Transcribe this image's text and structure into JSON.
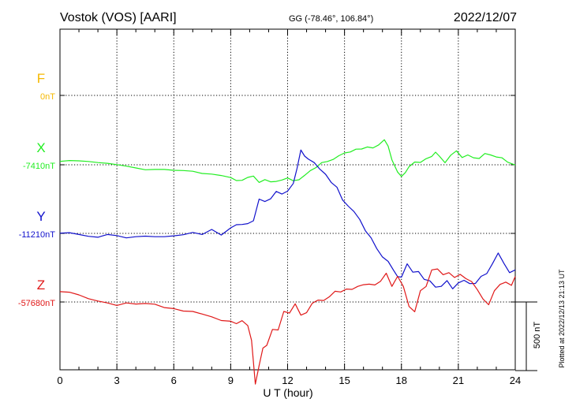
{
  "header": {
    "station": "Vostok (VOS)  [AARI]",
    "coords": "GG (-78.46°, 106.84°)",
    "date": "2022/12/07"
  },
  "footer": {
    "plotted": "Plotted at 2022/12/13 21:13 UT"
  },
  "chart_data": {
    "type": "line",
    "xlabel": "U T (hour)",
    "xlim": [
      0,
      24
    ],
    "xticks": [
      "0",
      "3",
      "6",
      "9",
      "12",
      "15",
      "18",
      "21",
      "24"
    ],
    "scale_label": "500 nT",
    "scale_nT": 500,
    "series": [
      {
        "name": "F",
        "baseline_label": "0nT",
        "color": "#f5b800",
        "x": [],
        "y": []
      },
      {
        "name": "X",
        "baseline_label": "-7410nT",
        "color": "#22ee22",
        "x": [
          0,
          0.5,
          1,
          1.5,
          2,
          2.5,
          3,
          3.5,
          4,
          4.5,
          5,
          5.5,
          6,
          6.5,
          7,
          7.5,
          8,
          8.5,
          9,
          9.3,
          9.6,
          9.9,
          10.2,
          10.5,
          10.8,
          11.1,
          11.4,
          11.7,
          12,
          12.3,
          12.6,
          12.9,
          13.2,
          13.5,
          13.8,
          14.1,
          14.4,
          14.7,
          15,
          15.3,
          15.6,
          15.9,
          16.2,
          16.5,
          16.8,
          17.1,
          17.3,
          17.5,
          17.8,
          18,
          18.2,
          18.4,
          18.7,
          19,
          19.3,
          19.6,
          19.8,
          20,
          20.3,
          20.6,
          20.9,
          21.2,
          21.5,
          21.8,
          22.1,
          22.4,
          22.7,
          23,
          23.3,
          23.6,
          24
        ],
        "y": [
          25,
          31,
          29,
          24,
          16,
          11,
          1,
          -10,
          -23,
          -36,
          -34,
          -34,
          -40,
          -42,
          -47,
          -63,
          -68,
          -78,
          -93,
          -115,
          -113,
          -92,
          -82,
          -129,
          -108,
          -124,
          -121,
          -111,
          -96,
          -116,
          -109,
          -77,
          -42,
          -20,
          16,
          24,
          39,
          66,
          86,
          93,
          114,
          115,
          130,
          123,
          145,
          183,
          136,
          36,
          -53,
          -85,
          -58,
          -14,
          20,
          17,
          44,
          61,
          92,
          63,
          15,
          70,
          102,
          53,
          72,
          51,
          46,
          82,
          72,
          57,
          51,
          19,
          -2
        ]
      },
      {
        "name": "Y",
        "baseline_label": "-11210nT",
        "color": "#1111cc",
        "x": [
          0,
          0.5,
          1,
          1.5,
          2,
          2.5,
          3,
          3.5,
          4,
          4.5,
          5,
          5.5,
          6,
          6.5,
          7,
          7.5,
          8,
          8.5,
          9,
          9.3,
          9.6,
          9.9,
          10.2,
          10.5,
          10.8,
          11.1,
          11.4,
          11.7,
          12,
          12.3,
          12.5,
          12.7,
          12.9,
          13.1,
          13.4,
          13.7,
          14,
          14.3,
          14.6,
          14.9,
          15.2,
          15.5,
          15.8,
          16.1,
          16.4,
          16.7,
          17,
          17.3,
          17.6,
          17.8,
          18,
          18.3,
          18.6,
          18.9,
          19.2,
          19.5,
          19.8,
          20.1,
          20.4,
          20.7,
          21,
          21.3,
          21.6,
          21.9,
          22.2,
          22.5,
          22.8,
          23.1,
          23.4,
          23.7,
          24
        ],
        "y": [
          2,
          5,
          -8,
          -21,
          -28,
          -8,
          -16,
          -33,
          -24,
          -20,
          -24,
          -24,
          -18,
          -10,
          7,
          -8,
          29,
          -12,
          40,
          63,
          65,
          71,
          92,
          250,
          232,
          252,
          306,
          287,
          308,
          364,
          475,
          608,
          563,
          541,
          516,
          468,
          431,
          371,
          337,
          243,
          198,
          159,
          102,
          19,
          -32,
          -111,
          -172,
          -204,
          -272,
          -315,
          -319,
          -222,
          -283,
          -278,
          -335,
          -346,
          -392,
          -386,
          -344,
          -404,
          -361,
          -342,
          -366,
          -365,
          -313,
          -293,
          -220,
          -143,
          -218,
          -286,
          -266
        ]
      },
      {
        "name": "Z",
        "baseline_label": "-57680nT",
        "color": "#e01818",
        "x": [
          0,
          0.5,
          1,
          1.5,
          2,
          2.5,
          3,
          3.5,
          4,
          4.5,
          5,
          5.5,
          6,
          6.5,
          7,
          7.5,
          8,
          8.5,
          9,
          9.3,
          9.6,
          9.9,
          10.1,
          10.3,
          10.5,
          10.7,
          10.9,
          11.2,
          11.5,
          11.8,
          12.1,
          12.4,
          12.7,
          13,
          13.3,
          13.6,
          13.9,
          14.2,
          14.5,
          14.8,
          15.1,
          15.4,
          15.7,
          16,
          16.3,
          16.6,
          16.9,
          17.2,
          17.5,
          17.8,
          18.1,
          18.4,
          18.7,
          19,
          19.3,
          19.6,
          19.9,
          20.2,
          20.5,
          20.8,
          21.1,
          21.4,
          21.7,
          22,
          22.3,
          22.6,
          22.9,
          23.2,
          23.5,
          23.8,
          24
        ],
        "y": [
          75,
          71,
          52,
          24,
          7,
          -7,
          -25,
          -7,
          -15,
          -11,
          -16,
          -41,
          -48,
          -66,
          -69,
          -88,
          -108,
          -135,
          -140,
          -158,
          -136,
          -172,
          -280,
          -598,
          -463,
          -336,
          -316,
          -200,
          -204,
          -69,
          -81,
          -13,
          -96,
          -78,
          -9,
          14,
          11,
          38,
          78,
          73,
          94,
          92,
          114,
          126,
          130,
          124,
          151,
          210,
          114,
          187,
          113,
          -33,
          -71,
          82,
          113,
          234,
          241,
          199,
          214,
          179,
          201,
          170,
          149,
          90,
          22,
          -20,
          82,
          128,
          145,
          121,
          186
        ]
      }
    ]
  }
}
